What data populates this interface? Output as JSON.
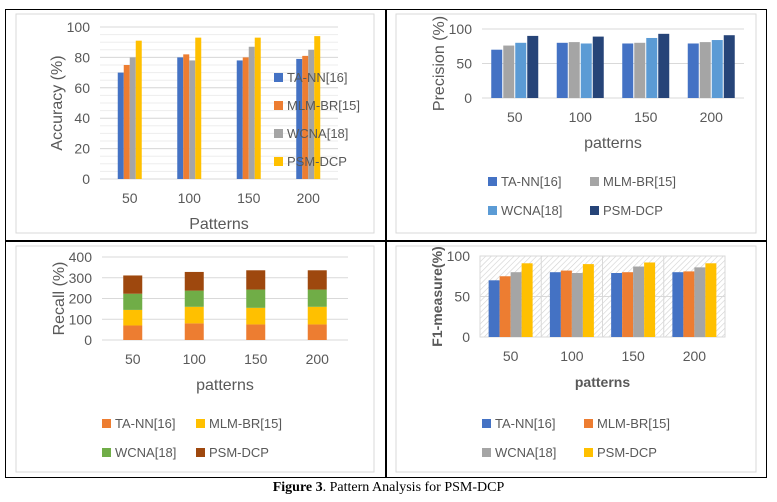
{
  "caption": {
    "bold": "Figure 3",
    "rest": ". Pattern Analysis for PSM-DCP"
  },
  "chart_data": [
    {
      "id": "accuracy",
      "type": "bar",
      "title": "",
      "xlabel": "Patterns",
      "ylabel": "Accuracy (%)",
      "categories": [
        "50",
        "100",
        "150",
        "200"
      ],
      "ylim": [
        0,
        100
      ],
      "yticks": [
        0,
        20,
        40,
        60,
        80,
        100
      ],
      "minor_gridlines": true,
      "legend": "right",
      "series": [
        {
          "name": "TA-NN[16]",
          "color": "#4472C4",
          "values": [
            70,
            80,
            78,
            79
          ]
        },
        {
          "name": "MLM-BR[15]",
          "color": "#ED7D31",
          "values": [
            75,
            82,
            80,
            81
          ]
        },
        {
          "name": "WCNA[18]",
          "color": "#A5A5A5",
          "values": [
            80,
            78,
            87,
            85
          ]
        },
        {
          "name": "PSM-DCP",
          "color": "#FFC000",
          "values": [
            91,
            93,
            93,
            94
          ]
        }
      ]
    },
    {
      "id": "precision",
      "type": "bar",
      "title": "",
      "xlabel": "patterns",
      "ylabel": "Precision (%)",
      "categories": [
        "50",
        "100",
        "150",
        "200"
      ],
      "ylim": [
        0,
        100
      ],
      "yticks": [
        0,
        50,
        100
      ],
      "legend": "bottom",
      "series": [
        {
          "name": "TA-NN[16]",
          "color": "#4472C4",
          "values": [
            70,
            80,
            79,
            79
          ]
        },
        {
          "name": "MLM-BR[15]",
          "color": "#A5A5A5",
          "values": [
            76,
            81,
            80,
            81
          ]
        },
        {
          "name": "WCNA[18]",
          "color": "#5B9BD5",
          "values": [
            80,
            79,
            87,
            84
          ]
        },
        {
          "name": "PSM-DCP",
          "color": "#264478",
          "values": [
            90,
            89,
            93,
            91
          ]
        }
      ]
    },
    {
      "id": "recall",
      "type": "bar",
      "stacked": true,
      "title": "",
      "xlabel": "patterns",
      "ylabel": "Recall (%)",
      "categories": [
        "50",
        "100",
        "150",
        "200"
      ],
      "ylim": [
        0,
        400
      ],
      "yticks": [
        0,
        100,
        200,
        300,
        400
      ],
      "legend": "bottom",
      "series": [
        {
          "name": "TA-NN[16]",
          "color": "#ED7D31",
          "values": [
            70,
            80,
            75,
            75
          ]
        },
        {
          "name": "MLM-BR[15]",
          "color": "#FFC000",
          "values": [
            75,
            80,
            80,
            85
          ]
        },
        {
          "name": "WCNA[18]",
          "color": "#70AD47",
          "values": [
            78,
            78,
            88,
            83
          ]
        },
        {
          "name": "PSM-DCP",
          "color": "#9E480E",
          "values": [
            88,
            90,
            93,
            93
          ]
        }
      ]
    },
    {
      "id": "f1",
      "type": "bar",
      "title": "",
      "xlabel": "patterns",
      "ylabel": "F1-measure(%)",
      "categories": [
        "50",
        "100",
        "150",
        "200"
      ],
      "ylim": [
        0,
        100
      ],
      "yticks": [
        0,
        50,
        100
      ],
      "hatched_background": true,
      "legend": "bottom",
      "series": [
        {
          "name": "TA-NN[16]",
          "color": "#4472C4",
          "values": [
            70,
            80,
            79,
            80
          ]
        },
        {
          "name": "MLM-BR[15]",
          "color": "#ED7D31",
          "values": [
            75,
            82,
            80,
            81
          ]
        },
        {
          "name": "WCNA[18]",
          "color": "#A5A5A5",
          "values": [
            80,
            79,
            87,
            86
          ]
        },
        {
          "name": "PSM-DCP",
          "color": "#FFC000",
          "values": [
            91,
            90,
            92,
            91
          ]
        }
      ]
    }
  ]
}
